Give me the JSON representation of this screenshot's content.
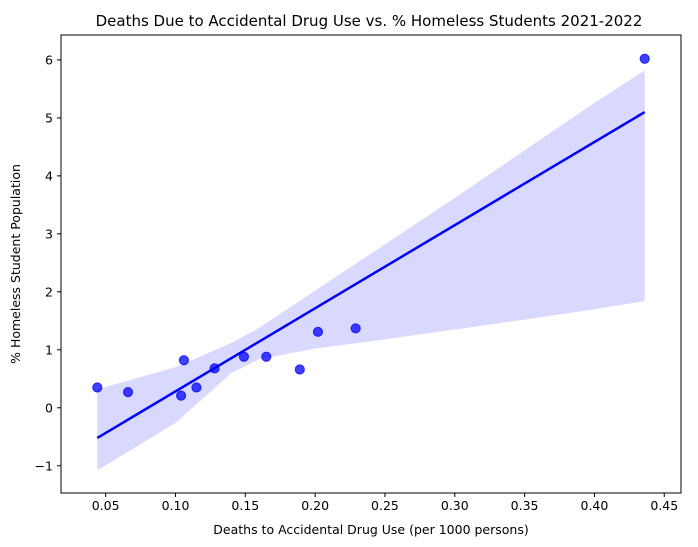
{
  "chart_data": {
    "type": "scatter",
    "title": "Deaths Due to Accidental Drug Use vs. % Homeless Students 2021-2022",
    "xlabel": "Deaths to Accidental Drug Use (per 1000 persons)",
    "ylabel": "% Homeless Student Population",
    "xlim": [
      0.018,
      0.462
    ],
    "ylim": [
      -1.47,
      6.43
    ],
    "xticks": [
      0.05,
      0.1,
      0.15,
      0.2,
      0.25,
      0.3,
      0.35,
      0.4,
      0.45
    ],
    "xtick_labels": [
      "0.05",
      "0.10",
      "0.15",
      "0.20",
      "0.25",
      "0.30",
      "0.35",
      "0.40",
      "0.45"
    ],
    "yticks": [
      -1,
      0,
      1,
      2,
      3,
      4,
      5,
      6
    ],
    "ytick_labels": [
      "−1",
      "0",
      "1",
      "2",
      "3",
      "4",
      "5",
      "6"
    ],
    "grid": false,
    "points": [
      {
        "x": 0.044,
        "y": 0.35
      },
      {
        "x": 0.066,
        "y": 0.27
      },
      {
        "x": 0.104,
        "y": 0.21
      },
      {
        "x": 0.106,
        "y": 0.82
      },
      {
        "x": 0.115,
        "y": 0.35
      },
      {
        "x": 0.128,
        "y": 0.68
      },
      {
        "x": 0.149,
        "y": 0.88
      },
      {
        "x": 0.165,
        "y": 0.88
      },
      {
        "x": 0.189,
        "y": 0.66
      },
      {
        "x": 0.202,
        "y": 1.31
      },
      {
        "x": 0.229,
        "y": 1.37
      },
      {
        "x": 0.436,
        "y": 6.02
      }
    ],
    "regression_line": {
      "x": [
        0.044,
        0.436
      ],
      "y": [
        -0.52,
        5.1
      ]
    },
    "confidence_band": {
      "x": [
        0.044,
        0.1,
        0.14,
        0.16,
        0.2,
        0.25,
        0.3,
        0.35,
        0.4,
        0.436
      ],
      "upper": [
        0.32,
        0.7,
        1.12,
        1.38,
        2.02,
        2.82,
        3.62,
        4.44,
        5.26,
        5.82
      ],
      "lower": [
        -1.08,
        -0.26,
        0.6,
        0.84,
        1.02,
        1.18,
        1.35,
        1.52,
        1.7,
        1.84
      ]
    },
    "colors": {
      "points": "#0000ff",
      "line": "#0000ff",
      "band": "#d9d9ff"
    }
  }
}
